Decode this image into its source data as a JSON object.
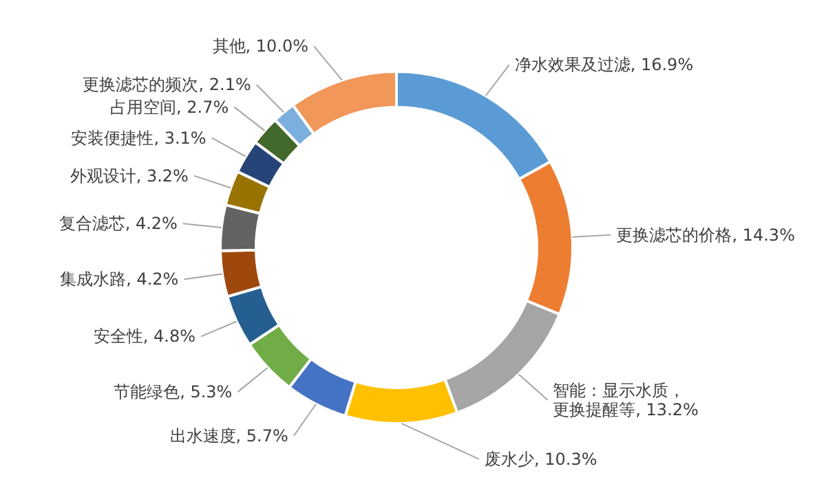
{
  "chart_data": {
    "type": "donut",
    "categories": [
      "净水效果及过滤",
      "更换滤芯的价格",
      "智能：显示水质，更换提醒等",
      "废水少",
      "出水速度",
      "节能绿色",
      "安全性",
      "集成水路",
      "复合滤芯",
      "外观设计",
      "安装便捷性",
      "占用空间",
      "更换滤芯的频次",
      "其他"
    ],
    "values": [
      16.9,
      14.3,
      13.2,
      10.3,
      5.7,
      5.3,
      4.8,
      4.2,
      4.2,
      3.2,
      3.1,
      2.7,
      2.1,
      10.0
    ],
    "value_labels": [
      "16.9%",
      "14.3%",
      "13.2%",
      "10.3%",
      "5.7%",
      "5.3%",
      "4.8%",
      "4.2%",
      "4.2%",
      "3.2%",
      "3.1%",
      "2.7%",
      "2.1%",
      "10.0%"
    ],
    "colors": [
      "#5b9bd5",
      "#ed7d31",
      "#a5a5a5",
      "#ffc000",
      "#4472c4",
      "#70ad47",
      "#255e91",
      "#9e480e",
      "#636363",
      "#997300",
      "#264478",
      "#43682b",
      "#7cafdd",
      "#f1975a"
    ]
  }
}
